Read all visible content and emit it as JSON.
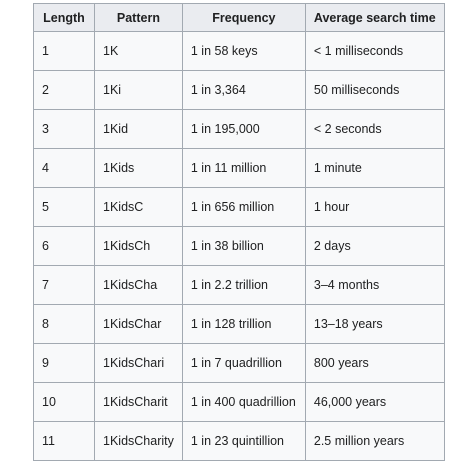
{
  "table": {
    "headers": [
      "Length",
      "Pattern",
      "Frequency",
      "Average search time"
    ],
    "rows": [
      [
        "1",
        "1K",
        "1 in 58 keys",
        "< 1 milliseconds"
      ],
      [
        "2",
        "1Ki",
        "1 in 3,364",
        "50 milliseconds"
      ],
      [
        "3",
        "1Kid",
        "1 in 195,000",
        "< 2 seconds"
      ],
      [
        "4",
        "1Kids",
        "1 in 11 million",
        "1 minute"
      ],
      [
        "5",
        "1KidsC",
        "1 in 656 million",
        "1 hour"
      ],
      [
        "6",
        "1KidsCh",
        "1 in 38 billion",
        "2 days"
      ],
      [
        "7",
        "1KidsCha",
        "1 in 2.2 trillion",
        "3–4 months"
      ],
      [
        "8",
        "1KidsChar",
        "1 in 128 trillion",
        "13–18 years"
      ],
      [
        "9",
        "1KidsChari",
        "1 in 7 quadrillion",
        "800 years"
      ],
      [
        "10",
        "1KidsCharit",
        "1 in 400 quadrillion",
        "46,000 years"
      ],
      [
        "11",
        "1KidsCharity",
        "1 in 23 quintillion",
        "2.5 million years"
      ]
    ]
  }
}
